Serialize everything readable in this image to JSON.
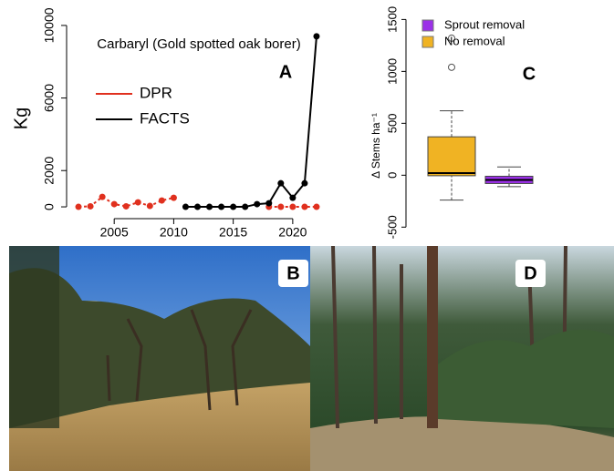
{
  "chart_data": [
    {
      "type": "line",
      "panel_label": "A",
      "title": "Carbaryl (Gold spotted oak borer)",
      "y_label": "Kg",
      "x": [
        2002,
        2003,
        2004,
        2005,
        2006,
        2007,
        2008,
        2009,
        2010,
        2011,
        2012,
        2013,
        2014,
        2015,
        2016,
        2017,
        2018,
        2019,
        2020,
        2021,
        2022
      ],
      "series": [
        {
          "name": "DPR",
          "color": "#e0301e",
          "values": [
            0,
            30,
            550,
            150,
            30,
            250,
            50,
            350,
            500,
            null,
            null,
            null,
            null,
            null,
            null,
            null,
            0,
            0,
            0,
            0,
            0
          ]
        },
        {
          "name": "FACTS",
          "color": "#000000",
          "values": [
            null,
            null,
            null,
            null,
            null,
            null,
            null,
            null,
            null,
            0,
            0,
            0,
            0,
            0,
            0,
            150,
            200,
            1300,
            500,
            1300,
            9400
          ]
        }
      ],
      "xlim": [
        2001,
        2023
      ],
      "ylim": [
        -650,
        10900
      ],
      "xticks": [
        2005,
        2010,
        2015,
        2020
      ],
      "yticks": [
        0,
        2000,
        6000,
        10000
      ],
      "legend": "left"
    },
    {
      "type": "box",
      "panel_label": "C",
      "y_label": "Δ Stems ha⁻¹",
      "series": [
        {
          "name": "Sprout removal",
          "color": "#9b30e8",
          "whisker_low": -110,
          "q1": -80,
          "median": -45,
          "q3": -10,
          "whisker_high": 80,
          "outliers": []
        },
        {
          "name": "No removal",
          "color": "#f0b323",
          "whisker_low": -240,
          "q1": -5,
          "median": 20,
          "q3": 370,
          "whisker_high": 620,
          "outliers": [
            1040,
            1320
          ]
        }
      ],
      "ylim": [
        -550,
        1600
      ],
      "yticks": [
        -500,
        0,
        500,
        1000,
        1500
      ],
      "legend": "top-left"
    }
  ],
  "photos": [
    {
      "label": "B"
    },
    {
      "label": "D"
    }
  ]
}
